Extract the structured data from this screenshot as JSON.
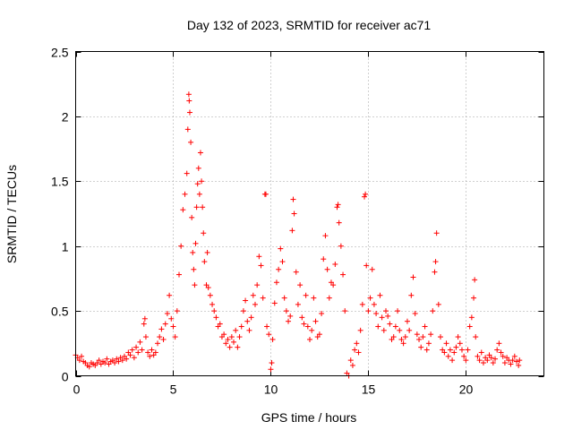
{
  "chart_data": {
    "type": "scatter",
    "title": "Day 132 of 2023, SRMTID for receiver ac71",
    "xlabel": "GPS time / hours",
    "ylabel": "SRMTID / TECUs",
    "xlim": [
      0,
      24
    ],
    "ylim": [
      0,
      2.5
    ],
    "xticks": [
      0,
      5,
      10,
      15,
      20
    ],
    "xtick_labels": [
      "0",
      "5",
      "10",
      "15",
      "20"
    ],
    "yticks": [
      0,
      0.5,
      1,
      1.5,
      2,
      2.5
    ],
    "ytick_labels": [
      "0",
      "0.5",
      "1",
      "1.5",
      "2",
      "2.5"
    ],
    "grid": true,
    "marker": "+",
    "color": "#ff0000",
    "series": [
      {
        "name": "SRMTID",
        "points": [
          [
            0.0,
            0.16
          ],
          [
            0.1,
            0.14
          ],
          [
            0.2,
            0.12
          ],
          [
            0.3,
            0.15
          ],
          [
            0.4,
            0.11
          ],
          [
            0.5,
            0.1
          ],
          [
            0.6,
            0.08
          ],
          [
            0.7,
            0.07
          ],
          [
            0.8,
            0.1
          ],
          [
            0.9,
            0.09
          ],
          [
            1.0,
            0.08
          ],
          [
            1.1,
            0.1
          ],
          [
            1.2,
            0.12
          ],
          [
            1.3,
            0.09
          ],
          [
            1.4,
            0.11
          ],
          [
            1.5,
            0.1
          ],
          [
            1.6,
            0.13
          ],
          [
            1.7,
            0.09
          ],
          [
            1.8,
            0.11
          ],
          [
            1.9,
            0.12
          ],
          [
            2.0,
            0.1
          ],
          [
            2.1,
            0.13
          ],
          [
            2.2,
            0.11
          ],
          [
            2.3,
            0.14
          ],
          [
            2.4,
            0.12
          ],
          [
            2.5,
            0.15
          ],
          [
            2.6,
            0.13
          ],
          [
            2.7,
            0.18
          ],
          [
            2.8,
            0.16
          ],
          [
            2.9,
            0.2
          ],
          [
            3.0,
            0.14
          ],
          [
            3.1,
            0.22
          ],
          [
            3.2,
            0.18
          ],
          [
            3.3,
            0.26
          ],
          [
            3.4,
            0.2
          ],
          [
            3.5,
            0.4
          ],
          [
            3.55,
            0.44
          ],
          [
            3.6,
            0.3
          ],
          [
            3.7,
            0.18
          ],
          [
            3.8,
            0.15
          ],
          [
            3.9,
            0.2
          ],
          [
            4.0,
            0.16
          ],
          [
            4.1,
            0.18
          ],
          [
            4.2,
            0.25
          ],
          [
            4.3,
            0.3
          ],
          [
            4.4,
            0.36
          ],
          [
            4.5,
            0.28
          ],
          [
            4.6,
            0.4
          ],
          [
            4.7,
            0.48
          ],
          [
            4.8,
            0.62
          ],
          [
            4.9,
            0.44
          ],
          [
            5.0,
            0.38
          ],
          [
            5.1,
            0.3
          ],
          [
            5.2,
            0.5
          ],
          [
            5.3,
            0.78
          ],
          [
            5.4,
            1.0
          ],
          [
            5.5,
            1.28
          ],
          [
            5.6,
            1.4
          ],
          [
            5.7,
            1.56
          ],
          [
            5.75,
            1.9
          ],
          [
            5.8,
            2.17
          ],
          [
            5.82,
            2.12
          ],
          [
            5.85,
            2.03
          ],
          [
            5.9,
            1.8
          ],
          [
            5.95,
            1.22
          ],
          [
            6.0,
            0.95
          ],
          [
            6.05,
            0.82
          ],
          [
            6.1,
            0.7
          ],
          [
            6.15,
            1.02
          ],
          [
            6.2,
            1.3
          ],
          [
            6.25,
            1.48
          ],
          [
            6.3,
            1.6
          ],
          [
            6.35,
            1.4
          ],
          [
            6.4,
            1.72
          ],
          [
            6.45,
            1.5
          ],
          [
            6.5,
            1.3
          ],
          [
            6.55,
            1.1
          ],
          [
            6.6,
            0.88
          ],
          [
            6.7,
            0.7
          ],
          [
            6.75,
            0.95
          ],
          [
            6.8,
            0.68
          ],
          [
            6.9,
            0.62
          ],
          [
            7.0,
            0.55
          ],
          [
            7.1,
            0.5
          ],
          [
            7.2,
            0.45
          ],
          [
            7.3,
            0.38
          ],
          [
            7.4,
            0.4
          ],
          [
            7.5,
            0.3
          ],
          [
            7.6,
            0.32
          ],
          [
            7.7,
            0.25
          ],
          [
            7.8,
            0.28
          ],
          [
            7.9,
            0.22
          ],
          [
            8.0,
            0.3
          ],
          [
            8.1,
            0.26
          ],
          [
            8.2,
            0.35
          ],
          [
            8.3,
            0.22
          ],
          [
            8.4,
            0.3
          ],
          [
            8.5,
            0.38
          ],
          [
            8.6,
            0.5
          ],
          [
            8.7,
            0.58
          ],
          [
            8.8,
            0.42
          ],
          [
            8.9,
            0.35
          ],
          [
            9.0,
            0.45
          ],
          [
            9.1,
            0.62
          ],
          [
            9.2,
            0.55
          ],
          [
            9.3,
            0.7
          ],
          [
            9.4,
            0.92
          ],
          [
            9.5,
            0.85
          ],
          [
            9.6,
            0.6
          ],
          [
            9.7,
            1.4
          ],
          [
            9.75,
            1.4
          ],
          [
            9.8,
            0.38
          ],
          [
            9.9,
            0.32
          ],
          [
            10.0,
            0.05
          ],
          [
            10.05,
            0.1
          ],
          [
            10.1,
            0.28
          ],
          [
            10.2,
            0.56
          ],
          [
            10.3,
            0.72
          ],
          [
            10.4,
            0.82
          ],
          [
            10.5,
            0.98
          ],
          [
            10.6,
            0.88
          ],
          [
            10.7,
            0.6
          ],
          [
            10.8,
            0.5
          ],
          [
            10.9,
            0.42
          ],
          [
            11.0,
            0.46
          ],
          [
            11.1,
            1.12
          ],
          [
            11.15,
            1.36
          ],
          [
            11.2,
            1.25
          ],
          [
            11.3,
            0.8
          ],
          [
            11.4,
            0.55
          ],
          [
            11.5,
            0.7
          ],
          [
            11.6,
            0.45
          ],
          [
            11.7,
            0.4
          ],
          [
            11.8,
            0.62
          ],
          [
            11.9,
            0.38
          ],
          [
            12.0,
            0.28
          ],
          [
            12.1,
            0.35
          ],
          [
            12.2,
            0.6
          ],
          [
            12.3,
            0.42
          ],
          [
            12.4,
            0.3
          ],
          [
            12.5,
            0.32
          ],
          [
            12.6,
            0.48
          ],
          [
            12.7,
            0.9
          ],
          [
            12.8,
            1.08
          ],
          [
            12.9,
            0.82
          ],
          [
            13.0,
            0.6
          ],
          [
            13.1,
            0.72
          ],
          [
            13.2,
            0.7
          ],
          [
            13.3,
            0.86
          ],
          [
            13.4,
            1.3
          ],
          [
            13.45,
            1.32
          ],
          [
            13.5,
            1.18
          ],
          [
            13.6,
            1.0
          ],
          [
            13.7,
            0.78
          ],
          [
            13.8,
            0.5
          ],
          [
            13.9,
            0.02
          ],
          [
            14.0,
            0.0
          ],
          [
            14.1,
            0.12
          ],
          [
            14.2,
            0.08
          ],
          [
            14.3,
            0.2
          ],
          [
            14.4,
            0.25
          ],
          [
            14.5,
            0.18
          ],
          [
            14.6,
            0.35
          ],
          [
            14.7,
            0.55
          ],
          [
            14.8,
            1.38
          ],
          [
            14.85,
            1.4
          ],
          [
            14.9,
            0.85
          ],
          [
            15.0,
            0.5
          ],
          [
            15.1,
            0.6
          ],
          [
            15.2,
            0.82
          ],
          [
            15.3,
            0.55
          ],
          [
            15.4,
            0.48
          ],
          [
            15.5,
            0.38
          ],
          [
            15.6,
            0.62
          ],
          [
            15.7,
            0.45
          ],
          [
            15.8,
            0.35
          ],
          [
            15.9,
            0.5
          ],
          [
            16.0,
            0.46
          ],
          [
            16.1,
            0.4
          ],
          [
            16.2,
            0.28
          ],
          [
            16.3,
            0.3
          ],
          [
            16.4,
            0.38
          ],
          [
            16.5,
            0.5
          ],
          [
            16.6,
            0.35
          ],
          [
            16.7,
            0.28
          ],
          [
            16.8,
            0.25
          ],
          [
            16.9,
            0.3
          ],
          [
            17.0,
            0.42
          ],
          [
            17.1,
            0.35
          ],
          [
            17.2,
            0.62
          ],
          [
            17.3,
            0.76
          ],
          [
            17.4,
            0.48
          ],
          [
            17.5,
            0.32
          ],
          [
            17.6,
            0.28
          ],
          [
            17.7,
            0.22
          ],
          [
            17.8,
            0.3
          ],
          [
            17.9,
            0.38
          ],
          [
            18.0,
            0.2
          ],
          [
            18.1,
            0.25
          ],
          [
            18.2,
            0.32
          ],
          [
            18.3,
            0.5
          ],
          [
            18.4,
            0.8
          ],
          [
            18.45,
            0.88
          ],
          [
            18.5,
            1.1
          ],
          [
            18.6,
            0.55
          ],
          [
            18.7,
            0.3
          ],
          [
            18.8,
            0.2
          ],
          [
            18.9,
            0.18
          ],
          [
            19.0,
            0.25
          ],
          [
            19.1,
            0.15
          ],
          [
            19.2,
            0.2
          ],
          [
            19.3,
            0.12
          ],
          [
            19.4,
            0.18
          ],
          [
            19.5,
            0.22
          ],
          [
            19.6,
            0.3
          ],
          [
            19.7,
            0.25
          ],
          [
            19.8,
            0.2
          ],
          [
            19.9,
            0.15
          ],
          [
            20.0,
            0.12
          ],
          [
            20.1,
            0.2
          ],
          [
            20.2,
            0.38
          ],
          [
            20.3,
            0.45
          ],
          [
            20.4,
            0.6
          ],
          [
            20.45,
            0.74
          ],
          [
            20.5,
            0.3
          ],
          [
            20.6,
            0.15
          ],
          [
            20.7,
            0.12
          ],
          [
            20.8,
            0.18
          ],
          [
            20.9,
            0.1
          ],
          [
            21.0,
            0.14
          ],
          [
            21.1,
            0.12
          ],
          [
            21.2,
            0.16
          ],
          [
            21.3,
            0.14
          ],
          [
            21.4,
            0.1
          ],
          [
            21.5,
            0.13
          ],
          [
            21.6,
            0.2
          ],
          [
            21.7,
            0.25
          ],
          [
            21.8,
            0.18
          ],
          [
            21.9,
            0.15
          ],
          [
            22.0,
            0.1
          ],
          [
            22.1,
            0.14
          ],
          [
            22.2,
            0.12
          ],
          [
            22.3,
            0.09
          ],
          [
            22.4,
            0.12
          ],
          [
            22.5,
            0.15
          ],
          [
            22.6,
            0.11
          ],
          [
            22.7,
            0.08
          ],
          [
            22.75,
            0.12
          ]
        ]
      }
    ]
  }
}
